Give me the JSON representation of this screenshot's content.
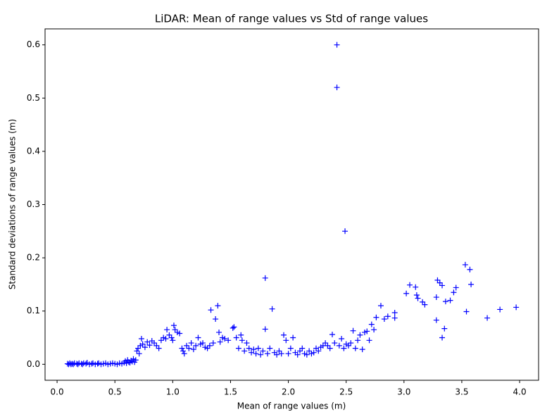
{
  "chart_data": {
    "type": "scatter",
    "title": "LiDAR: Mean of range values vs Std of range values",
    "x_label": "Mean of range values (m)",
    "y_label": "Standard deviations of range values (m)",
    "marker": "+",
    "grid": false,
    "xlim": [
      -0.104,
      4.164
    ],
    "ylim": [
      -0.03,
      0.63
    ],
    "xticks": [
      {
        "value": 0,
        "label": "0.0"
      },
      0.5,
      {
        "value": 1,
        "label": "1.0"
      },
      1.5,
      {
        "value": 2,
        "label": "2.0"
      },
      2.5,
      {
        "value": 3,
        "label": "3.0"
      },
      3.5,
      {
        "value": 4,
        "label": "4.0"
      }
    ],
    "yticks": [
      {
        "value": 0,
        "label": "0.0"
      },
      0.1,
      0.2,
      0.3,
      0.4,
      0.5,
      0.6
    ],
    "series": [
      {
        "color": "#0000ff",
        "x": [
          0.09,
          0.1,
          0.11,
          0.12,
          0.13,
          0.14,
          0.15,
          0.17,
          0.18,
          0.19,
          0.21,
          0.22,
          0.23,
          0.25,
          0.26,
          0.28,
          0.3,
          0.31,
          0.33,
          0.35,
          0.36,
          0.38,
          0.4,
          0.42,
          0.44,
          0.46,
          0.48,
          0.5,
          0.52,
          0.54,
          0.56,
          0.58,
          0.59,
          0.6,
          0.61,
          0.62,
          0.63,
          0.64,
          0.65,
          0.66,
          0.67,
          0.68,
          0.69,
          0.7,
          0.71,
          0.72,
          0.73,
          0.74,
          0.76,
          0.78,
          0.8,
          0.82,
          0.84,
          0.86,
          0.88,
          0.9,
          0.92,
          0.94,
          0.95,
          0.97,
          0.99,
          1.0,
          1.01,
          1.02,
          1.04,
          1.06,
          1.08,
          1.09,
          1.1,
          1.12,
          1.14,
          1.16,
          1.18,
          1.2,
          1.22,
          1.24,
          1.26,
          1.28,
          1.3,
          1.32,
          1.33,
          1.35,
          1.37,
          1.39,
          1.4,
          1.41,
          1.43,
          1.45,
          1.48,
          1.52,
          1.53,
          1.55,
          1.57,
          1.59,
          1.6,
          1.62,
          1.64,
          1.66,
          1.68,
          1.7,
          1.72,
          1.74,
          1.76,
          1.78,
          1.8,
          1.8,
          1.82,
          1.84,
          1.86,
          1.88,
          1.9,
          1.92,
          1.94,
          1.96,
          1.98,
          2.0,
          2.02,
          2.04,
          2.06,
          2.08,
          2.1,
          2.12,
          2.14,
          2.16,
          2.18,
          2.2,
          2.22,
          2.24,
          2.26,
          2.28,
          2.3,
          2.32,
          2.34,
          2.36,
          2.38,
          2.4,
          2.42,
          2.42,
          2.44,
          2.46,
          2.48,
          2.49,
          2.5,
          2.52,
          2.54,
          2.56,
          2.58,
          2.6,
          2.62,
          2.64,
          2.66,
          2.68,
          2.7,
          2.72,
          2.74,
          2.76,
          2.8,
          2.83,
          2.86,
          2.92,
          2.92,
          3.02,
          3.05,
          3.1,
          3.11,
          3.12,
          3.16,
          3.18,
          3.28,
          3.28,
          3.29,
          3.31,
          3.33,
          3.33,
          3.35,
          3.36,
          3.4,
          3.43,
          3.45,
          3.53,
          3.54,
          3.57,
          3.58,
          3.72,
          3.83,
          3.97
        ],
        "y": [
          0.001,
          0.0,
          0.002,
          0.0,
          0.001,
          0.0,
          0.002,
          0.001,
          0.0,
          0.002,
          0.001,
          0.0,
          0.002,
          0.001,
          0.003,
          0.0,
          0.001,
          0.002,
          0.0,
          0.001,
          0.002,
          0.0,
          0.001,
          0.002,
          0.0,
          0.001,
          0.002,
          0.001,
          0.0,
          0.002,
          0.001,
          0.003,
          0.006,
          0.002,
          0.008,
          0.004,
          0.003,
          0.007,
          0.005,
          0.01,
          0.004,
          0.008,
          0.025,
          0.03,
          0.02,
          0.035,
          0.048,
          0.038,
          0.032,
          0.042,
          0.036,
          0.044,
          0.04,
          0.035,
          0.03,
          0.045,
          0.05,
          0.048,
          0.065,
          0.055,
          0.05,
          0.045,
          0.073,
          0.065,
          0.06,
          0.058,
          0.03,
          0.025,
          0.02,
          0.035,
          0.03,
          0.04,
          0.028,
          0.035,
          0.05,
          0.038,
          0.04,
          0.032,
          0.03,
          0.035,
          0.102,
          0.04,
          0.085,
          0.11,
          0.06,
          0.042,
          0.05,
          0.048,
          0.045,
          0.068,
          0.07,
          0.05,
          0.03,
          0.055,
          0.045,
          0.025,
          0.04,
          0.03,
          0.022,
          0.028,
          0.02,
          0.03,
          0.018,
          0.025,
          0.162,
          0.066,
          0.02,
          0.03,
          0.104,
          0.022,
          0.018,
          0.025,
          0.02,
          0.055,
          0.045,
          0.02,
          0.03,
          0.05,
          0.022,
          0.018,
          0.025,
          0.03,
          0.02,
          0.018,
          0.025,
          0.02,
          0.022,
          0.03,
          0.025,
          0.032,
          0.035,
          0.04,
          0.035,
          0.03,
          0.056,
          0.04,
          0.6,
          0.52,
          0.035,
          0.048,
          0.03,
          0.25,
          0.038,
          0.035,
          0.04,
          0.063,
          0.03,
          0.045,
          0.055,
          0.028,
          0.06,
          0.062,
          0.045,
          0.075,
          0.065,
          0.088,
          0.11,
          0.085,
          0.09,
          0.097,
          0.087,
          0.133,
          0.149,
          0.145,
          0.13,
          0.124,
          0.117,
          0.112,
          0.083,
          0.126,
          0.158,
          0.153,
          0.148,
          0.05,
          0.067,
          0.118,
          0.12,
          0.135,
          0.144,
          0.187,
          0.099,
          0.178,
          0.15,
          0.087,
          0.103,
          0.107
        ]
      }
    ]
  }
}
